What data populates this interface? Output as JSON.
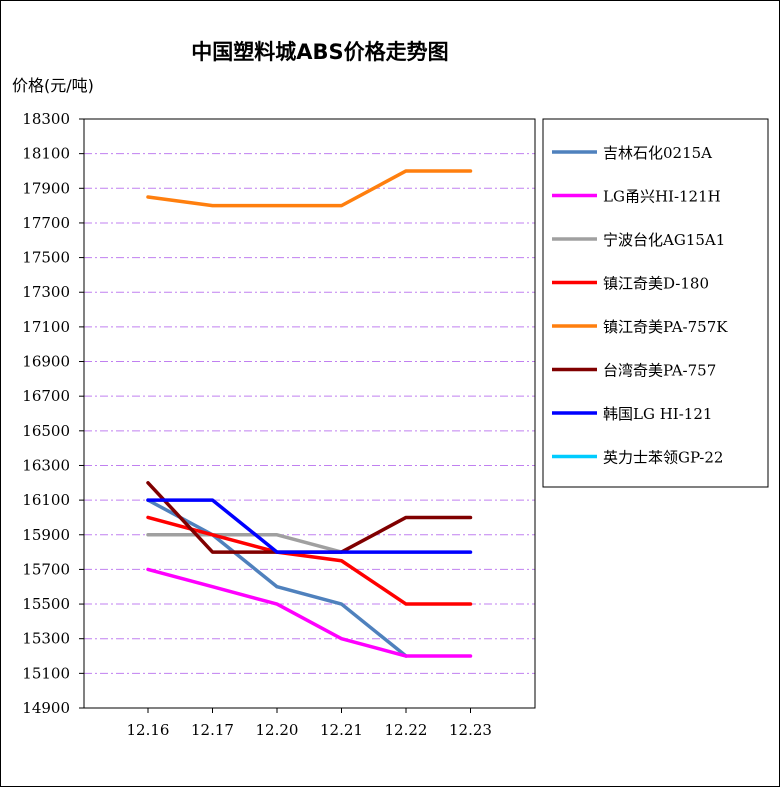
{
  "chart_data": {
    "type": "line",
    "title": "中国塑料城ABS价格走势图",
    "ylabel": "价格(元/吨)",
    "xlabel": "",
    "ylim": [
      14900,
      18300
    ],
    "yticks": [
      14900,
      15100,
      15300,
      15500,
      15700,
      15900,
      16100,
      16300,
      16500,
      16700,
      16900,
      17100,
      17300,
      17500,
      17700,
      17900,
      18100,
      18300
    ],
    "grid": true,
    "legend_position": "right",
    "categories": [
      "12.16",
      "12.17",
      "12.20",
      "12.21",
      "12.22",
      "12.23"
    ],
    "series": [
      {
        "name": "吉林石化0215A",
        "color": "#4f81bd",
        "values": [
          16100,
          15900,
          15600,
          15500,
          15200,
          null
        ]
      },
      {
        "name": "LG甬兴HI-121H",
        "color": "#ff00ff",
        "values": [
          15700,
          15600,
          15500,
          15300,
          15200,
          15200
        ]
      },
      {
        "name": "宁波台化AG15A1",
        "color": "#a0a0a0",
        "values": [
          15900,
          15900,
          15900,
          15800,
          null,
          null
        ]
      },
      {
        "name": "镇江奇美D-180",
        "color": "#ff0000",
        "values": [
          16000,
          15900,
          15800,
          15750,
          15500,
          15500
        ]
      },
      {
        "name": "镇江奇美PA-757K",
        "color": "#ff7f0e",
        "values": [
          17850,
          17800,
          17800,
          17800,
          18000,
          18000
        ]
      },
      {
        "name": "台湾奇美PA-757",
        "color": "#800000",
        "values": [
          16200,
          15800,
          15800,
          15800,
          16000,
          16000
        ]
      },
      {
        "name": "韩国LG HI-121",
        "color": "#0000ff",
        "values": [
          16100,
          16100,
          15800,
          15800,
          15800,
          15800
        ]
      },
      {
        "name": "英力士苯领GP-22",
        "color": "#00ccff",
        "values": [
          null,
          null,
          null,
          null,
          null,
          null
        ]
      }
    ]
  }
}
